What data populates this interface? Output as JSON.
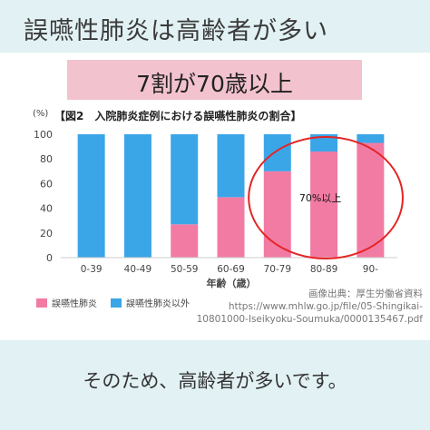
{
  "header": {
    "title": "誤嚥性肺炎は高齢者が多い"
  },
  "banner": {
    "text": "7割が70歳以上"
  },
  "chart_data": {
    "type": "bar",
    "stacked": true,
    "title": "【図2　入院肺炎症例における誤嚥性肺炎の割合】",
    "ylabel": "(%)",
    "xlabel": "年齢（歳）",
    "ylim": [
      0,
      100
    ],
    "yticks": [
      0,
      20,
      40,
      60,
      80,
      100
    ],
    "grid": false,
    "categories": [
      "0-39",
      "40-49",
      "50-59",
      "60-69",
      "70-79",
      "80-89",
      "90-"
    ],
    "series": [
      {
        "name": "誤嚥性肺炎",
        "color": "#f27ba4",
        "values": [
          0,
          0,
          27,
          49,
          70,
          86,
          93
        ]
      },
      {
        "name": "誤嚥性肺炎以外",
        "color": "#3aa6e8",
        "values": [
          100,
          100,
          73,
          51,
          30,
          14,
          7
        ]
      }
    ],
    "legend_position": "bottom-left",
    "annotation": {
      "text": "70%以上",
      "shape": "ellipse",
      "color": "#e52424",
      "categories": [
        "70-79",
        "80-89",
        "90-"
      ]
    }
  },
  "source": {
    "line1": "画像出典：厚生労働省資料",
    "line2": "https://www.mhlw.go.jp/file/05-Shingikai-",
    "line3": "10801000-Iseikyoku-Soumuka/0000135467.pdf"
  },
  "footer": {
    "text": "そのため、高齢者が多いです。"
  }
}
